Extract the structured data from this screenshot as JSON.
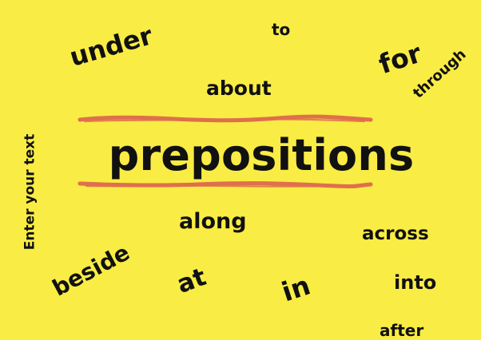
{
  "background": "#f9ec44",
  "accent": "#df6f4d",
  "text_color": "#111111",
  "title": "prepositions",
  "words": {
    "under": "under",
    "to": "to",
    "for": "for",
    "through": "through",
    "about": "about",
    "enter_your_text": "Enter your text",
    "along": "along",
    "across": "across",
    "beside": "beside",
    "at": "at",
    "in": "in",
    "into": "into",
    "after": "after"
  }
}
